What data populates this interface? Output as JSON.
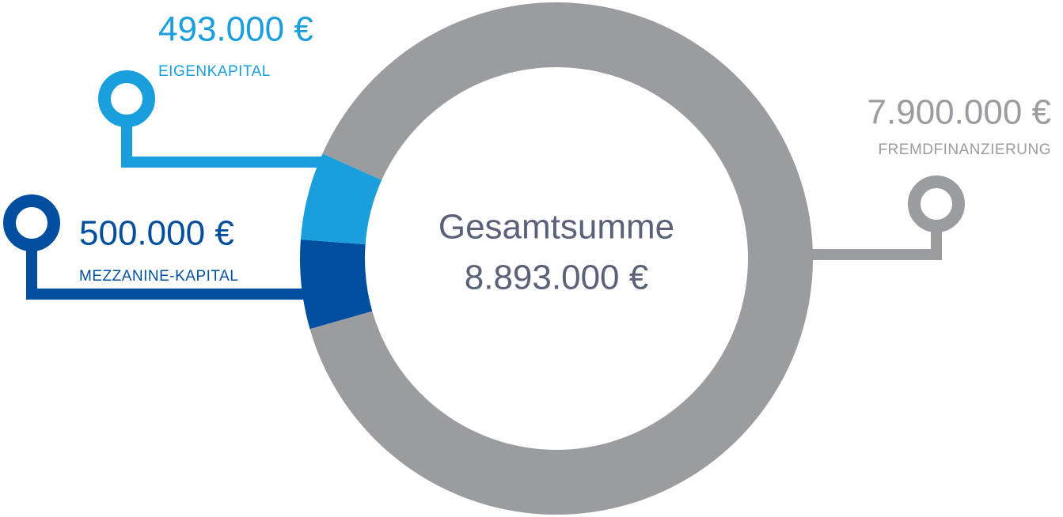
{
  "chart_data": {
    "type": "donut",
    "categories": [
      "MEZZANINE-KAPITAL",
      "EIGENKAPITAL",
      "FREMDFINANZIERUNG"
    ],
    "values": [
      500000,
      493000,
      7900000
    ],
    "value_labels": [
      "500.000 €",
      "493.000 €",
      "7.900.000 €"
    ],
    "colors": [
      "#004f9f",
      "#1a9fdc",
      "#9b9c9f"
    ],
    "center_label": "Gesamtsumme",
    "center_value": "8.893.000 €"
  }
}
